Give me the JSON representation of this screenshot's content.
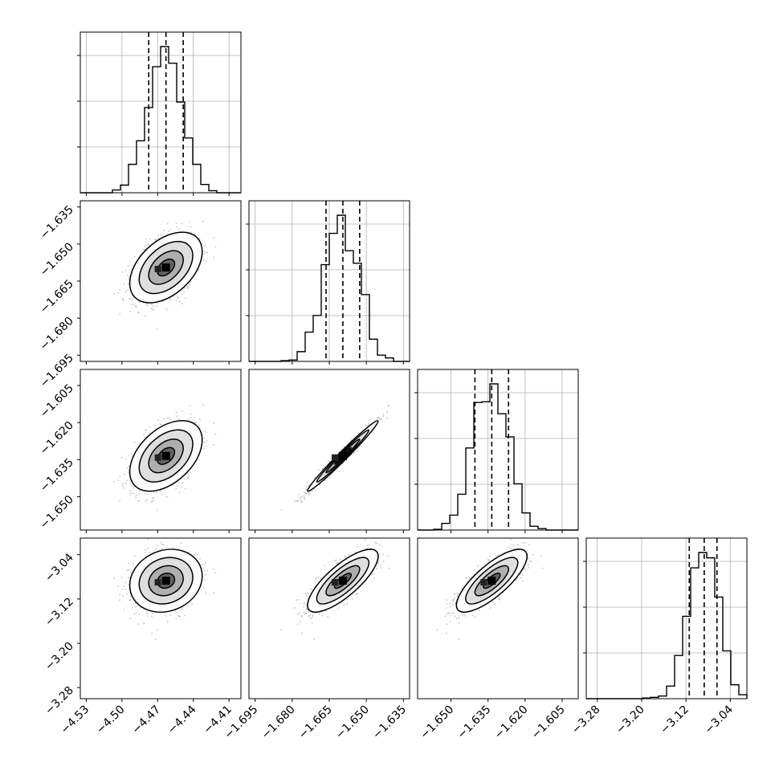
{
  "chart_data": {
    "type": "corner",
    "grid": true,
    "n_params": 4,
    "params": [
      {
        "center": -4.463,
        "sigma": 0.0145,
        "quantiles": [
          -4.4775,
          -4.463,
          -4.4485
        ],
        "range": [
          -4.535,
          -4.4
        ],
        "ticks": [
          -4.53,
          -4.5,
          -4.47,
          -4.44,
          -4.41
        ],
        "tick_labels": [
          "−4.53",
          "−4.50",
          "−4.47",
          "−4.44",
          "−4.41"
        ]
      },
      {
        "center": -1.6595,
        "sigma": 0.0068,
        "quantiles": [
          -1.6663,
          -1.6595,
          -1.6527
        ],
        "range": [
          -1.6975,
          -1.6325
        ],
        "ticks": [
          -1.695,
          -1.68,
          -1.665,
          -1.65,
          -1.635
        ],
        "tick_labels": [
          "−1.695",
          "−1.680",
          "−1.665",
          "−1.650",
          "−1.635"
        ]
      },
      {
        "center": -1.6335,
        "sigma": 0.0068,
        "quantiles": [
          -1.6403,
          -1.6335,
          -1.6267
        ],
        "range": [
          -1.6635,
          -1.5985
        ],
        "ticks": [
          -1.65,
          -1.635,
          -1.62,
          -1.605
        ],
        "tick_labels": [
          "−1.650",
          "−1.635",
          "−1.620",
          "−1.605"
        ],
        "ytick_labels_2d": [
          "−1.605",
          "−1.620",
          "−1.635",
          "−1.650"
        ],
        "ytick_values_2d": [
          -1.605,
          -1.62,
          -1.635,
          -1.65
        ]
      },
      {
        "center": -3.087,
        "sigma": 0.027,
        "quantiles": [
          -3.114,
          -3.087,
          -3.064
        ],
        "range": [
          -3.3,
          -3.01
        ],
        "ticks": [
          -3.28,
          -3.2,
          -3.12,
          -3.04
        ],
        "tick_labels": [
          "−3.28",
          "−3.20",
          "−3.12",
          "−3.04"
        ]
      }
    ],
    "row1_yticks": {
      "values": [
        -1.635,
        -1.65,
        -1.665,
        -1.68,
        -1.695
      ],
      "labels": [
        "−1.635",
        "−1.650",
        "−1.665",
        "−1.680",
        "−1.695"
      ]
    },
    "row2_yticks": {
      "values": [
        -1.605,
        -1.62,
        -1.635,
        -1.65
      ],
      "labels": [
        "−1.605",
        "−1.620",
        "−1.635",
        "−1.650"
      ]
    },
    "row3_yticks": {
      "values": [
        -3.04,
        -3.12,
        -3.2,
        -3.28
      ],
      "labels": [
        "−3.04",
        "−3.12",
        "−3.20",
        "−3.28"
      ]
    },
    "correlations": [
      [
        1,
        0.45,
        0.45,
        0.15
      ],
      [
        0.45,
        1,
        0.985,
        0.78
      ],
      [
        0.45,
        0.985,
        1,
        0.78
      ],
      [
        0.15,
        0.78,
        0.78,
        1
      ]
    ],
    "n_samples_shown": 1100,
    "colors": {
      "axes": "#000000",
      "grid": "#b0b0b0",
      "points": "#808080",
      "hist": "#000000"
    }
  }
}
